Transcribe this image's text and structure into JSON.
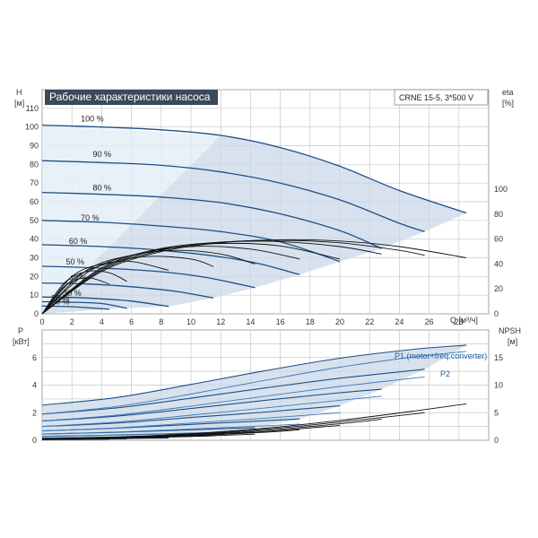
{
  "header": {
    "title": "Рабочие характеристики насоса",
    "model": "CRNE 15-5, 3*500 V"
  },
  "chart_data": [
    {
      "type": "line",
      "xlabel": "Q [м³/ч]",
      "ylabel": "H",
      "ylabel_unit": "[м]",
      "y2label": "eta",
      "y2label_unit": "[%]",
      "xlim": [
        0,
        30
      ],
      "ylim": [
        0,
        120
      ],
      "y2lim": [
        0,
        180
      ],
      "x_ticks": [
        0,
        2,
        4,
        6,
        8,
        10,
        12,
        14,
        16,
        18,
        20,
        22,
        24,
        26,
        28
      ],
      "y_ticks": [
        0,
        10,
        20,
        30,
        40,
        50,
        60,
        70,
        80,
        90,
        100,
        110
      ],
      "y2_ticks": [
        0,
        20,
        40,
        60,
        80,
        100
      ],
      "grid": true,
      "speed_curves": [
        {
          "name": "100 %",
          "label_xy": [
            2.6,
            103
          ],
          "x": [
            0,
            4,
            8,
            12,
            16,
            20,
            24,
            28.5
          ],
          "y": [
            101,
            100,
            98.5,
            95.5,
            89,
            79,
            66,
            54
          ]
        },
        {
          "name": "90 %",
          "label_xy": [
            3.4,
            84
          ],
          "x": [
            0,
            4,
            8,
            12,
            16,
            20,
            24,
            25.7
          ],
          "y": [
            82,
            81,
            79.5,
            76,
            70,
            61,
            48.5,
            44
          ]
        },
        {
          "name": "80 %",
          "label_xy": [
            3.4,
            66
          ],
          "x": [
            0,
            4,
            8,
            12,
            16,
            20,
            22.8
          ],
          "y": [
            65,
            64,
            62.5,
            59.5,
            53.5,
            44.5,
            35
          ]
        },
        {
          "name": "70 %",
          "label_xy": [
            2.6,
            50
          ],
          "x": [
            0,
            4,
            8,
            12,
            16,
            20
          ],
          "y": [
            50,
            49,
            47,
            44,
            38.5,
            28
          ]
        },
        {
          "name": "60 %",
          "label_xy": [
            1.8,
            37.5
          ],
          "x": [
            0,
            4,
            8,
            12,
            14.5,
            17.3
          ],
          "y": [
            37,
            36,
            34,
            30.5,
            27,
            21
          ]
        },
        {
          "name": "50 %",
          "label_xy": [
            1.6,
            26.5
          ],
          "x": [
            0,
            4,
            8,
            11,
            14.3
          ],
          "y": [
            25.5,
            24.5,
            22.5,
            19.5,
            14
          ]
        },
        {
          "name": "40 %",
          "label_xy": [
            1.8,
            17.5
          ],
          "x": [
            0,
            3,
            6,
            9,
            11.5
          ],
          "y": [
            16.5,
            16,
            14.5,
            12,
            8.5
          ]
        },
        {
          "name": "30 %",
          "label_xy": [
            1.4,
            9.5
          ],
          "x": [
            0,
            2,
            4,
            6,
            8.5
          ],
          "y": [
            9,
            8.8,
            8,
            6.8,
            4
          ]
        },
        {
          "name": "25 %",
          "label_xy": [
            0.6,
            7
          ],
          "x": [
            0,
            2,
            4,
            5.7
          ],
          "y": [
            6.5,
            6.2,
            5.5,
            3
          ]
        },
        {
          "name": "20 %",
          "label_xy": [
            0.6,
            5
          ],
          "x": [
            0,
            2,
            4.5
          ],
          "y": [
            4.2,
            3.8,
            2.5
          ]
        }
      ],
      "eta_curves": [
        {
          "x": [
            0,
            4,
            8,
            12,
            16,
            20,
            24,
            28.5
          ],
          "y": [
            0,
            34,
            50,
            57,
            59.5,
            58.5,
            54,
            45
          ]
        },
        {
          "x": [
            0,
            4,
            8,
            12,
            16,
            20,
            24,
            25.7
          ],
          "y": [
            0,
            35,
            51,
            57.5,
            59,
            57,
            51,
            47
          ]
        },
        {
          "x": [
            0,
            4,
            8,
            12,
            16,
            20,
            22.8
          ],
          "y": [
            0,
            36,
            52,
            57.5,
            58,
            54,
            48
          ]
        },
        {
          "x": [
            0,
            4,
            8,
            12,
            16,
            20
          ],
          "y": [
            0,
            37,
            52.5,
            56.5,
            54.5,
            44
          ]
        },
        {
          "x": [
            0,
            3,
            6,
            10,
            14,
            17.3
          ],
          "y": [
            0,
            33,
            47,
            54,
            52,
            44
          ]
        },
        {
          "x": [
            0,
            3,
            6,
            9,
            12,
            14.3
          ],
          "y": [
            0,
            35,
            47,
            51,
            48,
            40
          ]
        },
        {
          "x": [
            0,
            2,
            4,
            7,
            10,
            11.5
          ],
          "y": [
            0,
            27,
            39,
            46,
            44,
            38
          ]
        },
        {
          "x": [
            0,
            2,
            4,
            6,
            8.5
          ],
          "y": [
            0,
            30,
            40,
            42,
            35
          ]
        },
        {
          "x": [
            0,
            1.5,
            3,
            4.5,
            5.7
          ],
          "y": [
            0,
            25,
            34,
            33,
            26
          ]
        },
        {
          "x": [
            0,
            1.5,
            3,
            4.5
          ],
          "y": [
            0,
            22,
            29,
            24
          ]
        }
      ]
    },
    {
      "type": "line",
      "ylabel": "P",
      "ylabel_unit": "[кВт]",
      "y2label": "NPSH",
      "y2label_unit": "[м]",
      "xlim": [
        0,
        30
      ],
      "ylim": [
        0,
        8
      ],
      "y2lim": [
        0,
        20
      ],
      "y_ticks": [
        0,
        2,
        4,
        6
      ],
      "y2_ticks": [
        0,
        5,
        10,
        15
      ],
      "grid": true,
      "series_labels": [
        "P1 (motor+freq.converter)",
        "P2"
      ],
      "p1_curves": [
        {
          "x": [
            0,
            5,
            10,
            15,
            20,
            25,
            28.5
          ],
          "y": [
            2.55,
            3.1,
            4.05,
            5.05,
            5.95,
            6.6,
            6.9
          ]
        },
        {
          "x": [
            0,
            5,
            10,
            15,
            20,
            25.7
          ],
          "y": [
            1.9,
            2.35,
            3.05,
            3.8,
            4.5,
            5.15
          ]
        },
        {
          "x": [
            0,
            5,
            10,
            15,
            20,
            22.8
          ],
          "y": [
            1.4,
            1.75,
            2.3,
            2.9,
            3.45,
            3.7
          ]
        },
        {
          "x": [
            0,
            5,
            10,
            15,
            20
          ],
          "y": [
            1.0,
            1.25,
            1.65,
            2.05,
            2.5
          ]
        },
        {
          "x": [
            0,
            5,
            10,
            15,
            17.3
          ],
          "y": [
            0.68,
            0.88,
            1.15,
            1.42,
            1.55
          ]
        },
        {
          "x": [
            0,
            5,
            10,
            14.3
          ],
          "y": [
            0.45,
            0.58,
            0.76,
            0.92
          ]
        },
        {
          "x": [
            0,
            4,
            8,
            11.5
          ],
          "y": [
            0.28,
            0.36,
            0.46,
            0.55
          ]
        },
        {
          "x": [
            0,
            4,
            8.5
          ],
          "y": [
            0.16,
            0.21,
            0.27
          ]
        },
        {
          "x": [
            0,
            3,
            5.7
          ],
          "y": [
            0.1,
            0.13,
            0.16
          ]
        },
        {
          "x": [
            0,
            2,
            4.5
          ],
          "y": [
            0.06,
            0.08,
            0.1
          ]
        }
      ],
      "p2_curves": [
        {
          "x": [
            0,
            5,
            10,
            15,
            20,
            25,
            28.5
          ],
          "y": [
            1.9,
            2.45,
            3.35,
            4.35,
            5.3,
            6.05,
            6.45
          ]
        },
        {
          "x": [
            0,
            5,
            10,
            15,
            20,
            25.7
          ],
          "y": [
            1.4,
            1.82,
            2.48,
            3.2,
            3.9,
            4.6
          ]
        },
        {
          "x": [
            0,
            5,
            10,
            15,
            20,
            22.8
          ],
          "y": [
            1.0,
            1.32,
            1.82,
            2.35,
            2.9,
            3.2
          ]
        },
        {
          "x": [
            0,
            5,
            10,
            15,
            20
          ],
          "y": [
            0.68,
            0.9,
            1.25,
            1.6,
            2.0
          ]
        },
        {
          "x": [
            0,
            5,
            10,
            15,
            17.3
          ],
          "y": [
            0.45,
            0.6,
            0.82,
            1.05,
            1.18
          ]
        },
        {
          "x": [
            0,
            5,
            10,
            14.3
          ],
          "y": [
            0.28,
            0.37,
            0.5,
            0.62
          ]
        },
        {
          "x": [
            0,
            4,
            8,
            11.5
          ],
          "y": [
            0.16,
            0.21,
            0.28,
            0.34
          ]
        },
        {
          "x": [
            0,
            4,
            8.5
          ],
          "y": [
            0.09,
            0.12,
            0.15
          ]
        },
        {
          "x": [
            0,
            3,
            5.7
          ],
          "y": [
            0.05,
            0.07,
            0.09
          ]
        },
        {
          "x": [
            0,
            2,
            4.5
          ],
          "y": [
            0.03,
            0.04,
            0.05
          ]
        }
      ],
      "npsh_curves": [
        {
          "x": [
            0,
            5,
            10,
            15,
            20,
            25,
            28.5
          ],
          "y": [
            0.3,
            0.6,
            1.2,
            2.2,
            3.6,
            5.3,
            6.6
          ]
        },
        {
          "x": [
            0,
            5,
            10,
            15,
            20,
            25.7
          ],
          "y": [
            0.3,
            0.55,
            1.1,
            2.0,
            3.3,
            5.0
          ]
        },
        {
          "x": [
            0,
            5,
            10,
            15,
            20,
            22.8
          ],
          "y": [
            0.3,
            0.5,
            1.0,
            1.8,
            3.0,
            3.8
          ]
        },
        {
          "x": [
            0,
            5,
            10,
            15,
            20
          ],
          "y": [
            0.25,
            0.45,
            0.9,
            1.6,
            2.7
          ]
        },
        {
          "x": [
            0,
            5,
            10,
            15,
            17.3
          ],
          "y": [
            0.25,
            0.42,
            0.8,
            1.45,
            1.9
          ]
        },
        {
          "x": [
            0,
            5,
            10,
            14.3
          ],
          "y": [
            0.2,
            0.38,
            0.7,
            1.1
          ]
        },
        {
          "x": [
            0,
            4,
            8,
            11.5
          ],
          "y": [
            0.2,
            0.33,
            0.55,
            0.8
          ]
        },
        {
          "x": [
            0,
            4,
            8.5
          ],
          "y": [
            0.18,
            0.28,
            0.45
          ]
        },
        {
          "x": [
            0,
            3,
            5.7
          ],
          "y": [
            0.15,
            0.22,
            0.3
          ]
        },
        {
          "x": [
            0,
            2,
            4.5
          ],
          "y": [
            0.12,
            0.16,
            0.22
          ]
        }
      ]
    }
  ],
  "colors": {
    "curve": "#1d4f86",
    "band": "#c9d8e8",
    "band_light": "#e4edf6",
    "grid": "#c8c8c8",
    "title_bg": "#3a4a5a",
    "eta": "#111111",
    "legend": "#1f5fa8"
  }
}
